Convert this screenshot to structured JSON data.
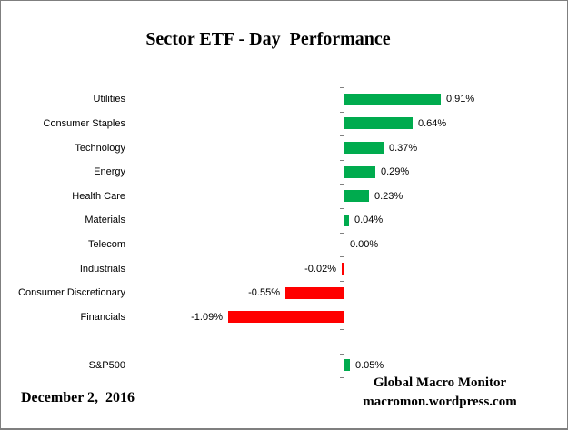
{
  "chart_data": {
    "type": "bar",
    "orientation": "horizontal",
    "title": "Sector ETF - Day  Performance",
    "xlabel": "",
    "ylabel": "",
    "categories": [
      "Utilities",
      "Consumer Staples",
      "Technology",
      "Energy",
      "Health Care",
      "Materials",
      "Telecom",
      "Industrials",
      "Consumer Discretionary",
      "Financials",
      "S&P500"
    ],
    "values": [
      0.91,
      0.64,
      0.37,
      0.29,
      0.23,
      0.04,
      0.0,
      -0.02,
      -0.55,
      -1.09,
      0.05
    ],
    "value_labels": [
      "0.91%",
      "0.64%",
      "0.37%",
      "0.29%",
      "0.23%",
      "0.04%",
      "0.00%",
      "-0.02%",
      "-0.55%",
      "-1.09%",
      "0.05%"
    ],
    "row_slots": [
      0,
      1,
      2,
      3,
      4,
      5,
      6,
      7,
      8,
      9,
      11
    ],
    "xlim": [
      -1.2,
      1.2
    ],
    "gridlines": false,
    "legend": "none",
    "value_label_position": "outside-end",
    "positive_color": "#00AB4E",
    "negative_color": "#FF0000",
    "axis_color": "#808080",
    "text_color": "#000000"
  },
  "footer": {
    "date": "December 2,  2016",
    "attribution_line1": "Global Macro Monitor",
    "attribution_line2": "macromon.wordpress.com"
  }
}
